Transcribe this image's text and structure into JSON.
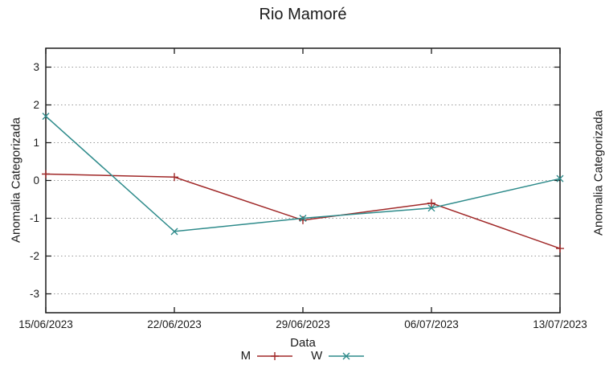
{
  "chart_data": {
    "type": "line",
    "title": "Rio Mamoré",
    "xlabel": "Data",
    "ylabel": "Anomalia Categorizada",
    "categories": [
      "15/06/2023",
      "22/06/2023",
      "29/06/2023",
      "06/07/2023",
      "13/07/2023"
    ],
    "series": [
      {
        "name": "M",
        "color": "#a02828",
        "marker": "plus",
        "values": [
          0.17,
          0.09,
          -1.05,
          -0.6,
          -1.8
        ]
      },
      {
        "name": "W",
        "color": "#2e8b8b",
        "marker": "cross",
        "values": [
          1.7,
          -1.35,
          -1.0,
          -0.73,
          0.05
        ]
      }
    ],
    "y_ticks": [
      -3,
      -2,
      -1,
      0,
      1,
      2,
      3
    ],
    "ylim": [
      -3.5,
      3.5
    ],
    "grid": "horizontal-dotted",
    "legend_position": "bottom-center"
  },
  "adjacent_chart": {
    "ylabel": "Anomalia Categorizada"
  },
  "colors": {
    "border": "#1a1a1a",
    "grid": "#9a9a9a",
    "series_m": "#a02828",
    "series_w": "#2e8b8b"
  }
}
